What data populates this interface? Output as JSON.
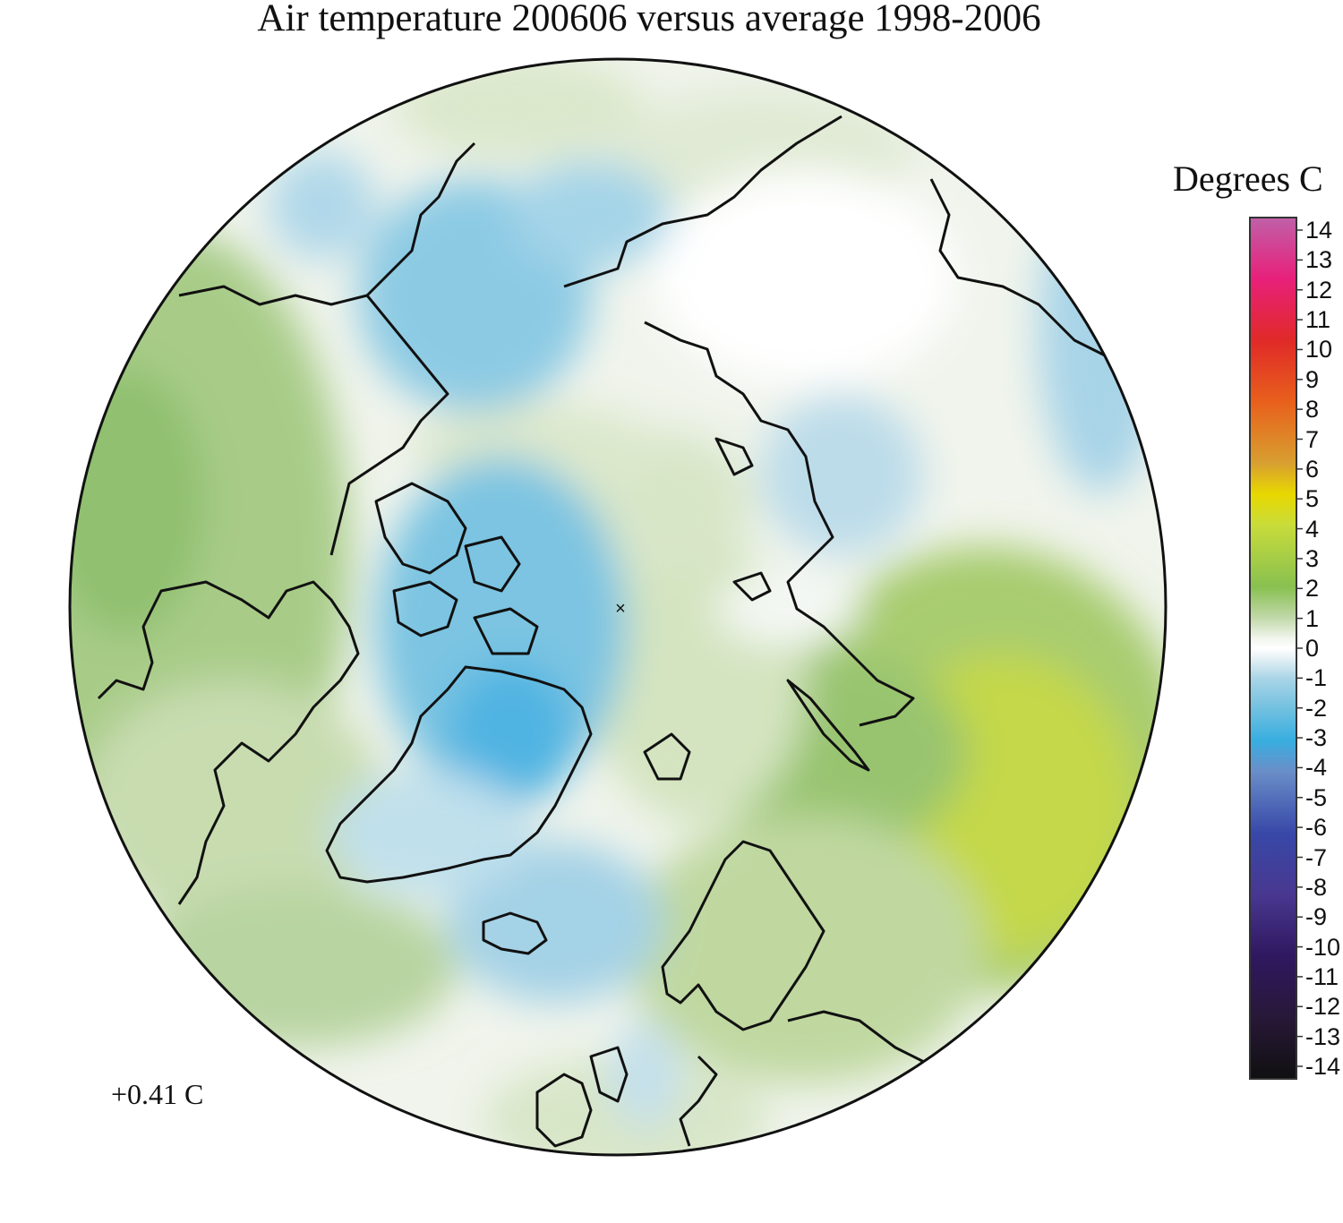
{
  "title": "Air temperature 200606 versus average 1998-2006",
  "colorbar": {
    "units": "Degrees C",
    "ticks": [
      "14",
      "13",
      "12",
      "11",
      "10",
      "9",
      "8",
      "7",
      "6",
      "5",
      "4",
      "3",
      "2",
      "1",
      "0",
      "-1",
      "-2",
      "-3",
      "-4",
      "-5",
      "-6",
      "-7",
      "-8",
      "-9",
      "-10",
      "-11",
      "-12",
      "-13",
      "-14"
    ],
    "range": [
      -14,
      14
    ],
    "color_stops": [
      {
        "value": 14,
        "color": "#c060a8"
      },
      {
        "value": 12,
        "color": "#e8207a"
      },
      {
        "value": 10,
        "color": "#e02a28"
      },
      {
        "value": 8,
        "color": "#e8601c"
      },
      {
        "value": 6,
        "color": "#d8a030"
      },
      {
        "value": 5,
        "color": "#e8d800"
      },
      {
        "value": 4,
        "color": "#c8dc3a"
      },
      {
        "value": 2,
        "color": "#88c050"
      },
      {
        "value": 1,
        "color": "#c0d8a8"
      },
      {
        "value": 0.3,
        "color": "#f2f6ee"
      },
      {
        "value": 0,
        "color": "#ffffff"
      },
      {
        "value": -0.3,
        "color": "#e8f2f6"
      },
      {
        "value": -1,
        "color": "#a8d4e6"
      },
      {
        "value": -2,
        "color": "#70c0e0"
      },
      {
        "value": -3,
        "color": "#38aee0"
      },
      {
        "value": -4,
        "color": "#6a8ec8"
      },
      {
        "value": -6,
        "color": "#3848a8"
      },
      {
        "value": -8,
        "color": "#483890"
      },
      {
        "value": -10,
        "color": "#301860"
      },
      {
        "value": -12,
        "color": "#281838"
      },
      {
        "value": -14,
        "color": "#101010"
      }
    ]
  },
  "global_anomaly": "+0.41 C",
  "pole_marker": "×"
}
